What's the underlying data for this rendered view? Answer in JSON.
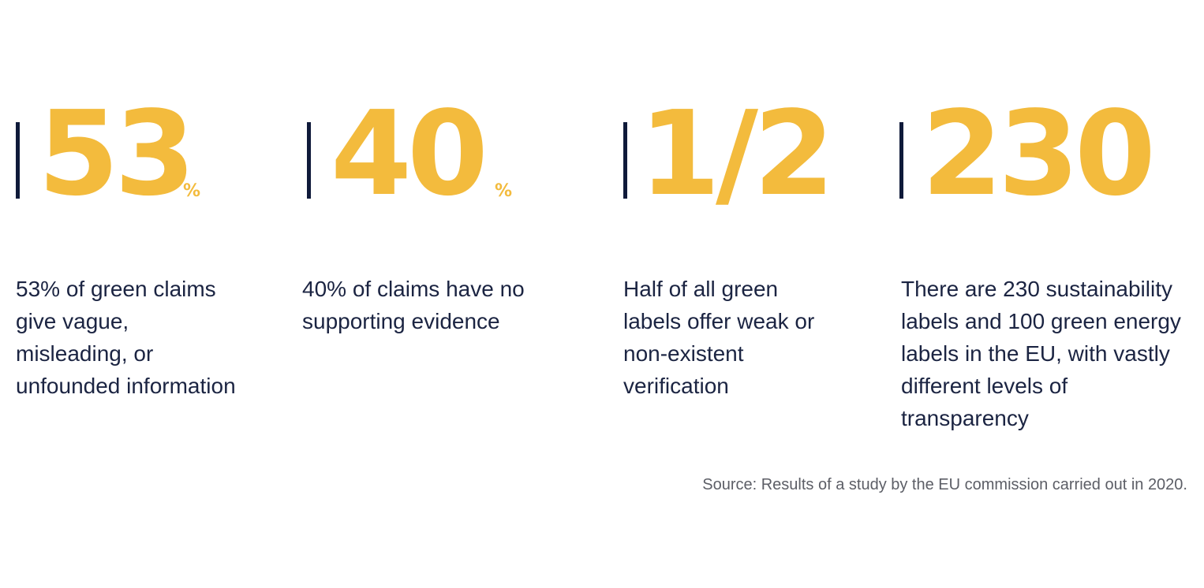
{
  "stats": [
    {
      "value": "53",
      "unit": "%",
      "description": "53% of green claims give vague, misleading, or unfounded information"
    },
    {
      "value": "40",
      "unit": "%",
      "description": "40% of claims have no supporting evidence"
    },
    {
      "value": "1/2",
      "unit": "",
      "description": "Half of all green labels offer weak or non-existent verification"
    },
    {
      "value": "230",
      "unit": "",
      "description": "There are 230 sustainability labels and 100 green energy labels in the EU, with vastly different levels of transparency"
    }
  ],
  "source": "Source: Results of a study by the EU commission carried out in 2020.",
  "colors": {
    "accent": "#f3bb3d",
    "divider": "#0f1a3a",
    "text": "#1b2442",
    "source_text": "#5c5e66"
  }
}
